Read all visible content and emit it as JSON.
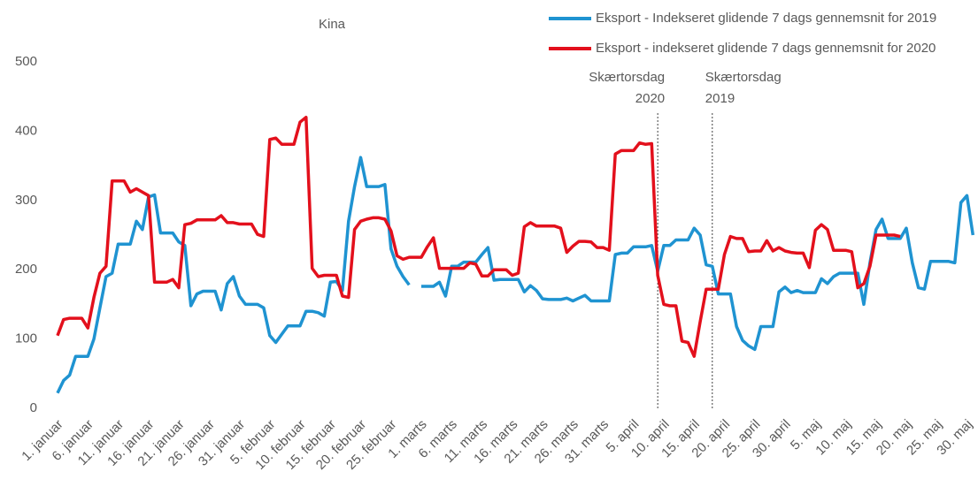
{
  "chart_data": {
    "type": "line",
    "title": "Kina",
    "categories": [
      "1. januar",
      null,
      null,
      null,
      null,
      "6. januar",
      null,
      null,
      null,
      null,
      "11. januar",
      null,
      null,
      null,
      null,
      "16. januar",
      null,
      null,
      null,
      null,
      "21. januar",
      null,
      null,
      null,
      null,
      "26. januar",
      null,
      null,
      null,
      null,
      "31. januar",
      null,
      null,
      null,
      null,
      "5. februar",
      null,
      null,
      null,
      null,
      "10. februar",
      null,
      null,
      null,
      null,
      "15. februar",
      null,
      null,
      null,
      null,
      "20. februar",
      null,
      null,
      null,
      null,
      "25. februar",
      null,
      null,
      null,
      null,
      "1. marts",
      null,
      null,
      null,
      null,
      "6. marts",
      null,
      null,
      null,
      null,
      "11. marts",
      null,
      null,
      null,
      null,
      "16. marts",
      null,
      null,
      null,
      null,
      "21. marts",
      null,
      null,
      null,
      null,
      "26. marts",
      null,
      null,
      null,
      null,
      "31. marts",
      null,
      null,
      null,
      null,
      "5. april",
      null,
      null,
      null,
      null,
      "10. april",
      null,
      null,
      null,
      null,
      "15. april",
      null,
      null,
      null,
      null,
      "20. april",
      null,
      null,
      null,
      null,
      "25. april",
      null,
      null,
      null,
      null,
      "30. april",
      null,
      null,
      null,
      null,
      "5. maj",
      null,
      null,
      null,
      null,
      "10. maj",
      null,
      null,
      null,
      null,
      "15. maj",
      null,
      null,
      null,
      null,
      "20. maj",
      null,
      null,
      null,
      null,
      "25. maj",
      null,
      null,
      null,
      null,
      "30. maj",
      null
    ],
    "series": [
      {
        "name": "Eksport - Indekseret glidende 7 dags gennemsnit for 2019",
        "color": "#1f93d1",
        "values": [
          22,
          40,
          48,
          75,
          75,
          75,
          100,
          145,
          190,
          195,
          237,
          237,
          237,
          270,
          258,
          305,
          308,
          253,
          253,
          253,
          240,
          235,
          148,
          165,
          169,
          169,
          169,
          142,
          180,
          190,
          162,
          150,
          150,
          150,
          145,
          105,
          95,
          107,
          119,
          119,
          119,
          140,
          140,
          138,
          133,
          182,
          183,
          170,
          270,
          320,
          362,
          320,
          320,
          320,
          323,
          230,
          205,
          190,
          178,
          null,
          176,
          176,
          176,
          182,
          162,
          205,
          205,
          211,
          211,
          211,
          222,
          232,
          185,
          186,
          186,
          186,
          186,
          168,
          177,
          170,
          158,
          157,
          157,
          157,
          159,
          155,
          159,
          163,
          155,
          155,
          155,
          155,
          222,
          224,
          224,
          233,
          233,
          233,
          235,
          198,
          235,
          235,
          243,
          243,
          243,
          260,
          250,
          207,
          205,
          165,
          165,
          165,
          118,
          98,
          90,
          85,
          118,
          118,
          118,
          168,
          175,
          167,
          170,
          167,
          167,
          167,
          187,
          180,
          190,
          195,
          195,
          195,
          195,
          150,
          210,
          258,
          273,
          245,
          245,
          245,
          260,
          210,
          174,
          172,
          212,
          212,
          212,
          212,
          210,
          297,
          307,
          250
        ]
      },
      {
        "name": "Eksport - indekseret glidende 7 dags gennemsnit for 2020",
        "color": "#e3101c",
        "values": [
          105,
          128,
          130,
          130,
          130,
          116,
          160,
          195,
          205,
          328,
          328,
          328,
          312,
          317,
          312,
          307,
          182,
          182,
          182,
          186,
          174,
          265,
          267,
          272,
          272,
          272,
          272,
          278,
          268,
          268,
          266,
          266,
          266,
          251,
          248,
          388,
          390,
          381,
          381,
          381,
          413,
          420,
          202,
          190,
          192,
          192,
          192,
          162,
          160,
          258,
          270,
          273,
          275,
          275,
          273,
          256,
          220,
          215,
          218,
          218,
          218,
          233,
          246,
          202,
          202,
          202,
          202,
          202,
          210,
          208,
          191,
          191,
          200,
          200,
          200,
          192,
          195,
          262,
          268,
          263,
          263,
          263,
          263,
          260,
          225,
          234,
          241,
          241,
          240,
          232,
          232,
          228,
          367,
          372,
          372,
          372,
          383,
          381,
          382,
          192,
          150,
          148,
          148,
          97,
          95,
          75,
          125,
          172,
          172,
          172,
          222,
          248,
          245,
          245,
          226,
          227,
          227,
          242,
          227,
          232,
          227,
          225,
          224,
          224,
          203,
          257,
          265,
          258,
          228,
          228,
          228,
          226,
          174,
          180,
          205,
          250,
          250,
          250,
          250,
          248,
          null,
          null,
          null,
          null,
          null,
          null,
          null,
          null,
          null,
          null,
          null,
          null
        ]
      }
    ],
    "ylim": [
      0,
      500
    ],
    "yticks": [
      0,
      100,
      200,
      300,
      400,
      500
    ],
    "grid": false,
    "legend": "top-right",
    "annotations": [
      {
        "x": 99,
        "lines": [
          "Skærtorsdag",
          "2020"
        ]
      },
      {
        "x": 108,
        "lines": [
          "Skærtorsdag",
          "2019"
        ]
      }
    ]
  }
}
